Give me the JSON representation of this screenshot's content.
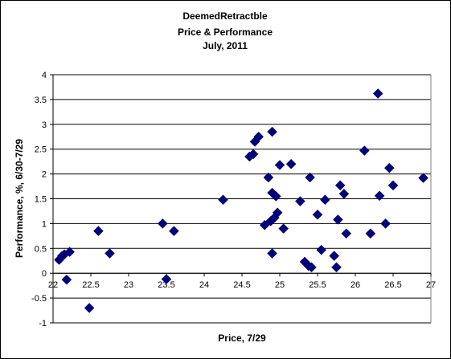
{
  "chart_data": {
    "type": "scatter",
    "title": [
      "DeemedRetractble",
      "Price & Performance",
      "July, 2011"
    ],
    "xlabel": "Price, 7/29",
    "ylabel": "Performance, %, 6/30-7/29",
    "xlim": [
      22,
      27
    ],
    "ylim": [
      -1,
      4
    ],
    "x_ticks": [
      "22",
      "22.5",
      "23",
      "23.5",
      "24",
      "24.5",
      "25",
      "25.5",
      "26",
      "26.5",
      "27"
    ],
    "y_ticks": [
      "-1",
      "-0.5",
      "0",
      "0.5",
      "1",
      "1.5",
      "2",
      "2.5",
      "3",
      "3.5",
      "4"
    ],
    "grid": "horizontal",
    "legend": "none",
    "marker": "diamond",
    "marker_color": "#00007F",
    "points": [
      {
        "x": 22.08,
        "y": 0.27
      },
      {
        "x": 22.12,
        "y": 0.35
      },
      {
        "x": 22.15,
        "y": 0.38
      },
      {
        "x": 22.22,
        "y": 0.43
      },
      {
        "x": 22.18,
        "y": -0.13
      },
      {
        "x": 22.48,
        "y": -0.7
      },
      {
        "x": 22.6,
        "y": 0.85
      },
      {
        "x": 22.75,
        "y": 0.4
      },
      {
        "x": 23.45,
        "y": 1.0
      },
      {
        "x": 23.5,
        "y": -0.12
      },
      {
        "x": 23.6,
        "y": 0.85
      },
      {
        "x": 24.25,
        "y": 1.48
      },
      {
        "x": 24.6,
        "y": 2.35
      },
      {
        "x": 24.65,
        "y": 2.4
      },
      {
        "x": 24.67,
        "y": 2.65
      },
      {
        "x": 24.72,
        "y": 2.75
      },
      {
        "x": 24.8,
        "y": 0.97
      },
      {
        "x": 24.85,
        "y": 1.93
      },
      {
        "x": 24.88,
        "y": 1.05
      },
      {
        "x": 24.9,
        "y": 1.62
      },
      {
        "x": 24.9,
        "y": 2.85
      },
      {
        "x": 24.9,
        "y": 0.4
      },
      {
        "x": 24.93,
        "y": 1.12
      },
      {
        "x": 24.95,
        "y": 1.55
      },
      {
        "x": 24.97,
        "y": 1.22
      },
      {
        "x": 25.0,
        "y": 2.18
      },
      {
        "x": 25.05,
        "y": 0.9
      },
      {
        "x": 25.15,
        "y": 2.2
      },
      {
        "x": 25.27,
        "y": 1.45
      },
      {
        "x": 25.33,
        "y": 0.23
      },
      {
        "x": 25.38,
        "y": 0.15
      },
      {
        "x": 25.42,
        "y": 0.12
      },
      {
        "x": 25.4,
        "y": 1.93
      },
      {
        "x": 25.5,
        "y": 1.18
      },
      {
        "x": 25.55,
        "y": 0.47
      },
      {
        "x": 25.6,
        "y": 1.48
      },
      {
        "x": 25.72,
        "y": 0.35
      },
      {
        "x": 25.75,
        "y": 0.12
      },
      {
        "x": 25.77,
        "y": 1.08
      },
      {
        "x": 25.8,
        "y": 1.77
      },
      {
        "x": 25.85,
        "y": 1.6
      },
      {
        "x": 25.88,
        "y": 0.8
      },
      {
        "x": 26.12,
        "y": 2.47
      },
      {
        "x": 26.2,
        "y": 0.8
      },
      {
        "x": 26.3,
        "y": 3.62
      },
      {
        "x": 26.32,
        "y": 1.56
      },
      {
        "x": 26.4,
        "y": 1.0
      },
      {
        "x": 26.45,
        "y": 2.12
      },
      {
        "x": 26.5,
        "y": 1.77
      },
      {
        "x": 26.9,
        "y": 1.92
      }
    ]
  }
}
